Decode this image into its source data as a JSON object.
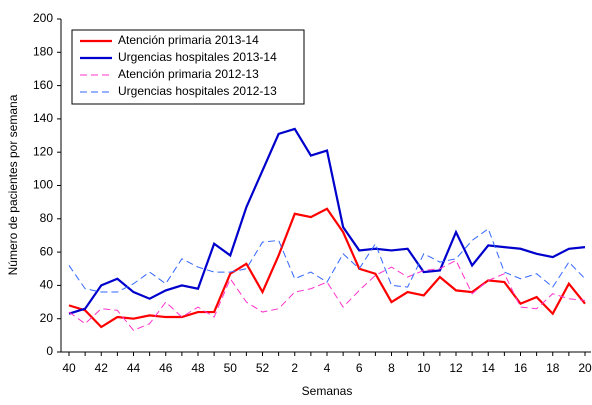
{
  "chart_data": {
    "type": "line",
    "x_label": "Semanas",
    "y_label": "Número de pacientes por semana",
    "categories": [
      "40",
      null,
      "42",
      null,
      "44",
      null,
      "46",
      null,
      "48",
      null,
      "50",
      null,
      "52",
      null,
      "2",
      null,
      "4",
      null,
      "6",
      null,
      "8",
      null,
      "10",
      null,
      "12",
      null,
      "14",
      null,
      "16",
      null,
      "18",
      null,
      "20"
    ],
    "ylim": [
      0,
      200
    ],
    "yticks": [
      0,
      20,
      40,
      60,
      80,
      100,
      120,
      140,
      160,
      180,
      200
    ],
    "legend": "top-left",
    "series": [
      {
        "name": "Atención primaria 2013-14",
        "color": "#ff0000",
        "dashed": false,
        "values": [
          28,
          25,
          15,
          21,
          20,
          22,
          21,
          21,
          24,
          24,
          47,
          53,
          36,
          58,
          83,
          81,
          86,
          72,
          50,
          47,
          30,
          36,
          34,
          45,
          37,
          36,
          43,
          42,
          29,
          33,
          23,
          41,
          29
        ]
      },
      {
        "name": "Urgencias hospitales 2013-14",
        "color": "#0000cc",
        "dashed": false,
        "values": [
          23,
          26,
          40,
          44,
          36,
          32,
          37,
          40,
          38,
          65,
          58,
          87,
          109,
          131,
          134,
          118,
          121,
          75,
          61,
          62,
          61,
          62,
          48,
          49,
          72,
          52,
          64,
          63,
          62,
          59,
          57,
          62,
          63
        ]
      },
      {
        "name": "Atención primaria 2012-13",
        "color": "#ff33cc",
        "dashed": true,
        "values": [
          24,
          17,
          26,
          25,
          13,
          17,
          30,
          21,
          27,
          21,
          44,
          30,
          24,
          26,
          36,
          38,
          42,
          27,
          37,
          46,
          51,
          45,
          49,
          50,
          55,
          35,
          43,
          47,
          27,
          26,
          35,
          32,
          31
        ]
      },
      {
        "name": "Urgencias hospitales 2012-13",
        "color": "#3366ff",
        "dashed": true,
        "values": [
          52,
          38,
          36,
          36,
          41,
          48,
          41,
          56,
          51,
          48,
          48,
          50,
          66,
          67,
          44,
          48,
          42,
          59,
          50,
          65,
          40,
          39,
          59,
          54,
          56,
          67,
          74,
          48,
          44,
          47,
          39,
          54,
          44
        ]
      }
    ]
  }
}
